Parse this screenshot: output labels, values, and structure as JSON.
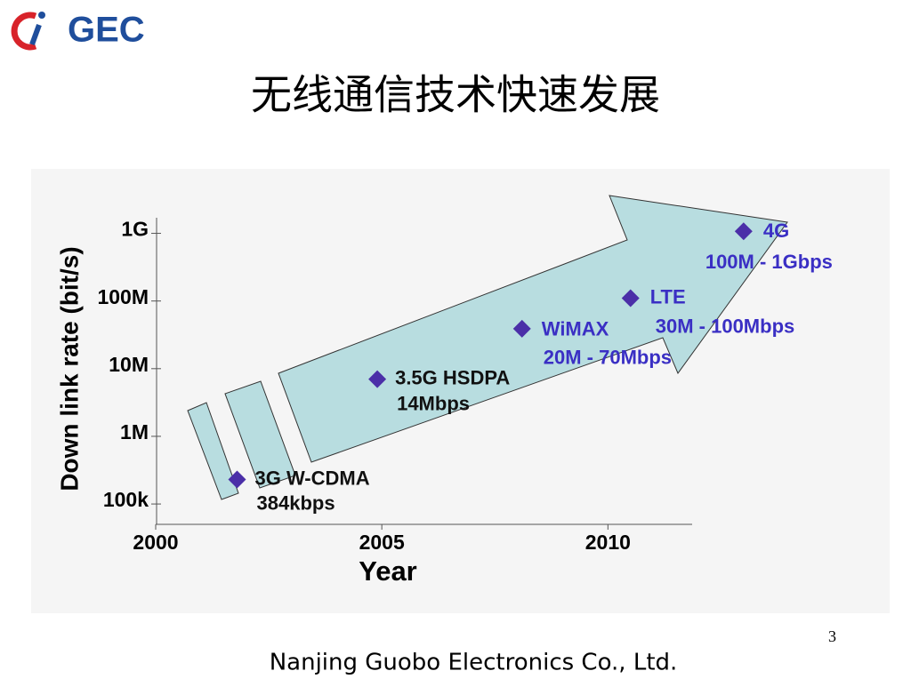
{
  "logo": "GEC",
  "title": "无线通信技术快速发展",
  "page_number": "3",
  "footer": "Nanjing Guobo Electronics Co., Ltd.",
  "chart_data": {
    "type": "scatter",
    "x_label": "Year",
    "y_label": "Down link rate  (bit/s)",
    "ylog": true,
    "xlim": [
      2000,
      2012
    ],
    "xticks": [
      2000,
      2005,
      2010
    ],
    "ylim": [
      50000,
      1700000000
    ],
    "yticks": [
      {
        "value": 100000,
        "label": "100k"
      },
      {
        "value": 1000000,
        "label": "1M"
      },
      {
        "value": 10000000,
        "label": "10M"
      },
      {
        "value": 100000000,
        "label": "100M"
      },
      {
        "value": 1000000000,
        "label": "1G"
      }
    ],
    "series": [
      {
        "color": "#4b2fa8",
        "x": [
          2001.8,
          2004.9,
          2008.1,
          2010.5,
          2013.0
        ],
        "values": [
          230000,
          7000000,
          39000000,
          110000000,
          1070000000
        ],
        "labels": [
          "3G W-CDMA",
          "3.5G HSDPA",
          "WiMAX",
          "LTE",
          "4G"
        ],
        "rates": [
          "384kbps",
          "14Mbps",
          "20M - 70Mbps",
          "30M - 100Mbps",
          "100M - 1Gbps"
        ],
        "label_colors": [
          "#111111",
          "#111111",
          "#3a2fc4",
          "#3a2fc4",
          "#3a2fc4"
        ]
      }
    ]
  }
}
